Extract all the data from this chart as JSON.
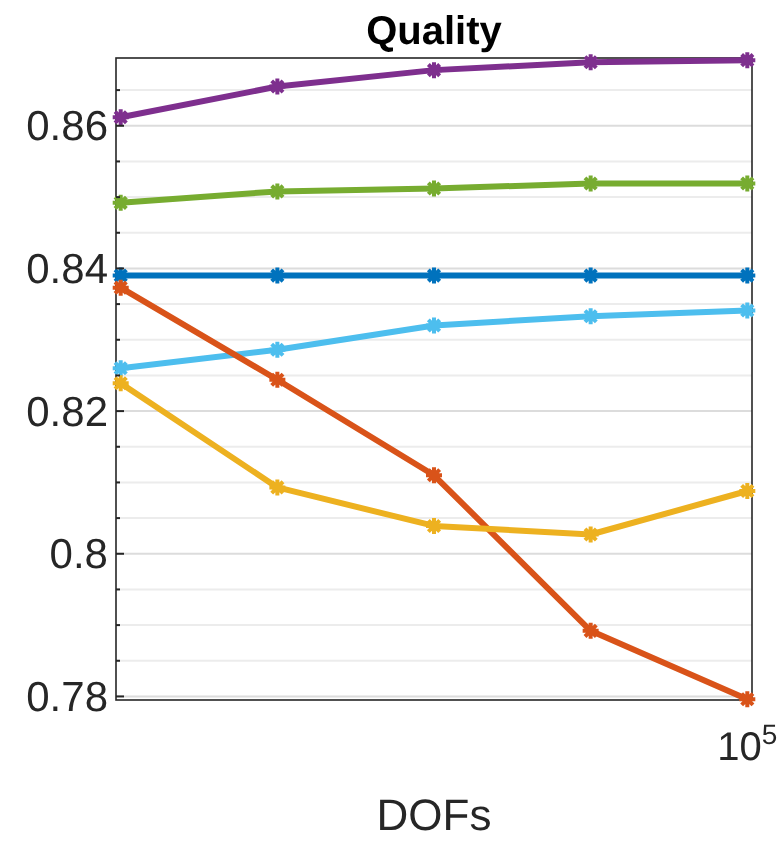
{
  "chart_data": {
    "type": "line",
    "title": "Quality",
    "xlabel": "DOFs",
    "grid": "y",
    "marker": "cross",
    "line_style": "solid",
    "categories": [
      null,
      null,
      null,
      null,
      "10$^{5}$"
    ],
    "ylim": [
      0.7795,
      0.8695
    ],
    "yticks": [
      0.78,
      {
        "value": 0.785,
        "label": null
      },
      {
        "value": 0.79,
        "label": null
      },
      {
        "value": 0.795,
        "label": null
      },
      0.8,
      {
        "value": 0.805,
        "label": null
      },
      {
        "value": 0.81,
        "label": null
      },
      {
        "value": 0.815,
        "label": null
      },
      0.82,
      {
        "value": 0.825,
        "label": null
      },
      {
        "value": 0.83,
        "label": null
      },
      {
        "value": 0.835,
        "label": null
      },
      0.84,
      {
        "value": 0.845,
        "label": null
      },
      {
        "value": 0.85,
        "label": null
      },
      {
        "value": 0.855,
        "label": null
      },
      0.86,
      {
        "value": 0.865,
        "label": null
      }
    ],
    "series": [
      {
        "color": "#7e2f8e",
        "values": [
          0.8612,
          0.8655,
          0.8678,
          0.8689,
          0.8692
        ]
      },
      {
        "color": "#77ac30",
        "values": [
          0.8492,
          0.8508,
          0.8512,
          0.8519,
          0.8519
        ]
      },
      {
        "color": "#0072bd",
        "values": [
          0.839,
          0.839,
          0.839,
          0.839,
          0.839
        ]
      },
      {
        "color": "#4dbeee",
        "values": [
          0.826,
          0.8286,
          0.832,
          0.8333,
          0.8341
        ]
      },
      {
        "color": "#d95319",
        "values": [
          0.8373,
          0.8244,
          0.811,
          0.7892,
          0.7796
        ]
      },
      {
        "color": "#edb120",
        "values": [
          0.8239,
          0.8093,
          0.8039,
          0.8027,
          0.8088
        ]
      }
    ]
  }
}
